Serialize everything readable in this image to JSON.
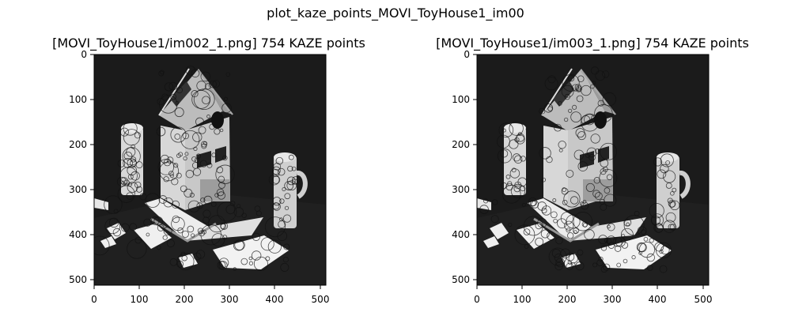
{
  "figure": {
    "suptitle": "plot_kaze_points_MOVI_ToyHouse1_im00"
  },
  "chart_data": [
    {
      "type": "image",
      "title": "[MOVI_ToyHouse1/im002_1.png] 754 KAZE points",
      "xlim": [
        0,
        512
      ],
      "ylim": [
        512,
        0
      ],
      "xticks": [
        0,
        100,
        200,
        300,
        400,
        500
      ],
      "yticks": [
        0,
        100,
        200,
        300,
        400,
        500
      ],
      "keypoint_count": 754,
      "colors": {
        "background": "#1b1b1b",
        "wall": "#d6d6d6",
        "roof": "#bdbdbd",
        "keypoint": "#111111"
      }
    },
    {
      "type": "image",
      "title": "[MOVI_ToyHouse1/im003_1.png] 754 KAZE points",
      "xlim": [
        0,
        512
      ],
      "ylim": [
        512,
        0
      ],
      "xticks": [
        0,
        100,
        200,
        300,
        400,
        500
      ],
      "yticks": [
        0,
        100,
        200,
        300,
        400,
        500
      ],
      "keypoint_count": 754,
      "colors": {
        "background": "#1b1b1b",
        "wall": "#d6d6d6",
        "roof": "#bdbdbd",
        "keypoint": "#111111"
      }
    }
  ]
}
